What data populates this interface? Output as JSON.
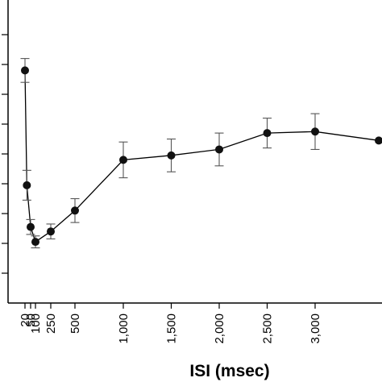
{
  "chart_data": {
    "type": "line",
    "xlabel": "ISI (msec)",
    "ylabel": "",
    "xlim": [
      -200,
      3300
    ],
    "ylim": [
      0,
      100
    ],
    "x_ticks": [
      {
        "value": 20,
        "label": "20"
      },
      {
        "value": 50,
        "label": "50"
      },
      {
        "value": 100,
        "label": "100"
      },
      {
        "value": 250,
        "label": "250"
      },
      {
        "value": 500,
        "label": "500"
      },
      {
        "value": 1000,
        "label": "1,000"
      },
      {
        "value": 1500,
        "label": "1,500"
      },
      {
        "value": 2000,
        "label": "2,000"
      },
      {
        "value": 2500,
        "label": "2,500"
      },
      {
        "value": 3000,
        "label": "3,000"
      }
    ],
    "y_ticks": [
      10,
      20,
      30,
      40,
      50,
      60,
      70,
      80,
      90
    ],
    "grid": false,
    "series": [
      {
        "points": [
          {
            "x": 20,
            "y": 78.0,
            "err": 4.0
          },
          {
            "x": 30,
            "y": 39.5,
            "err": 5.0
          },
          {
            "x": 50,
            "y": 25.5,
            "err": 2.5
          },
          {
            "x": 100,
            "y": 20.5,
            "err": 2.0
          },
          {
            "x": 250,
            "y": 24.0,
            "err": 2.5
          },
          {
            "x": 500,
            "y": 31.0,
            "err": 4.0
          },
          {
            "x": 1000,
            "y": 48.0,
            "err": 6.0
          },
          {
            "x": 1500,
            "y": 49.5,
            "err": 5.5
          },
          {
            "x": 2000,
            "y": 51.5,
            "err": 5.5
          },
          {
            "x": 2500,
            "y": 57.0,
            "err": 5.0
          },
          {
            "x": 3000,
            "y": 57.5,
            "err": 6.0
          },
          {
            "x": 3600,
            "y": 54.5,
            "err": 0
          }
        ]
      }
    ]
  }
}
